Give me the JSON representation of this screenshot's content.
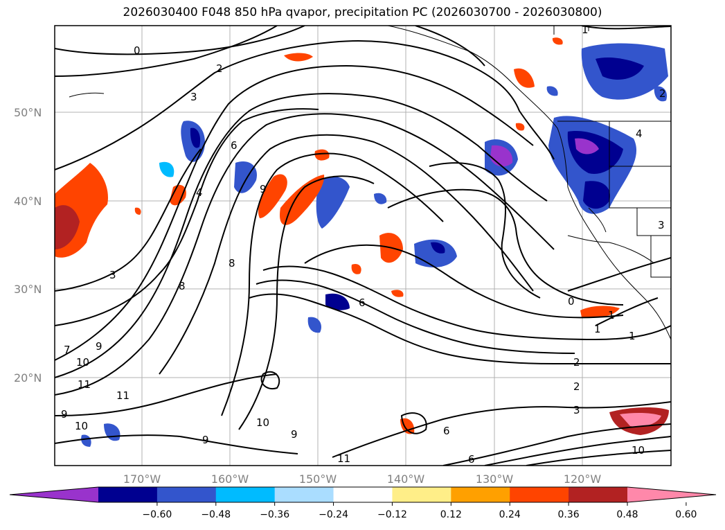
{
  "title": "2026030400 F048 850 hPa qvapor, precipitation PC (2026030700 - 2026030800)",
  "map": {
    "lat_ticks": [
      "50°N",
      "40°N",
      "30°N",
      "20°N"
    ],
    "lon_ticks": [
      "170°W",
      "160°W",
      "150°W",
      "140°W",
      "130°W",
      "120°W"
    ],
    "contour_labels": [
      "0",
      "1",
      "2",
      "3",
      "6",
      "9",
      "4",
      "7",
      "8",
      "3",
      "8",
      "9",
      "10",
      "11",
      "11",
      "9",
      "10",
      "9",
      "10",
      "9",
      "11",
      "6",
      "6",
      "6",
      "0",
      "1",
      "1",
      "1",
      "2",
      "2",
      "3",
      "10",
      "2",
      "3",
      "4"
    ]
  },
  "colorbar": {
    "ticks": [
      "−0.60",
      "−0.48",
      "−0.36",
      "−0.24",
      "−0.12",
      "0.12",
      "0.24",
      "0.36",
      "0.48",
      "0.60"
    ],
    "colors": [
      "#9933cc",
      "#000090",
      "#3355cc",
      "#00bbff",
      "#aaddff",
      "#ffffff",
      "#ffee88",
      "#ffa000",
      "#ff4400",
      "#b22222",
      "#ff88aa"
    ]
  }
}
